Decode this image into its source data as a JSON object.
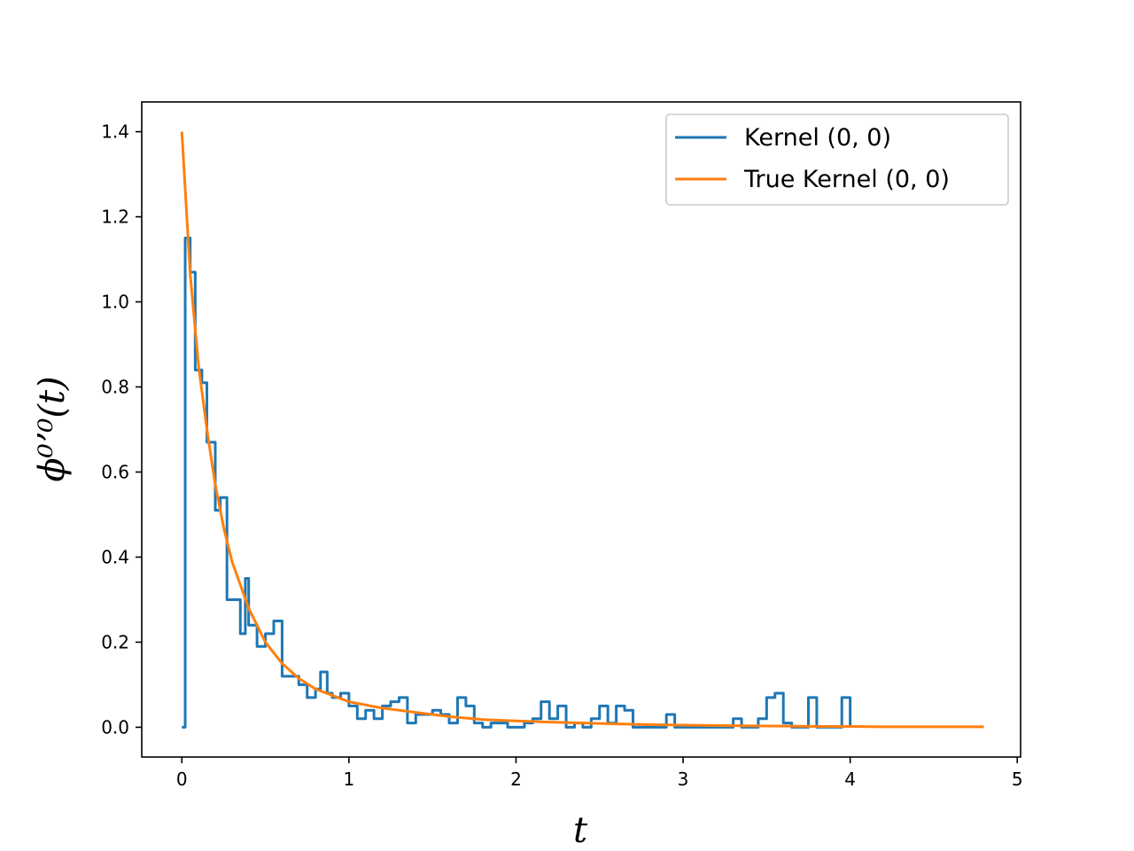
{
  "chart_data": {
    "type": "line",
    "title": "",
    "xlabel": "t",
    "ylabel": "ϕ⁰ʼ⁰(t)",
    "xlim": [
      -0.24,
      5.02
    ],
    "ylim": [
      -0.07,
      1.47
    ],
    "xticks": [
      0,
      1,
      2,
      3,
      4,
      5
    ],
    "yticks": [
      0.0,
      0.2,
      0.4,
      0.6,
      0.8,
      1.0,
      1.2,
      1.4
    ],
    "ytick_labels": [
      "0.0",
      "0.2",
      "0.4",
      "0.6",
      "0.8",
      "1.0",
      "1.2",
      "1.4"
    ],
    "grid": false,
    "legend_position": "top-right",
    "series": [
      {
        "name": "Kernel (0, 0)",
        "color": "#1f77b4",
        "style": "step",
        "x": [
          0,
          0.02,
          0.05,
          0.08,
          0.12,
          0.15,
          0.2,
          0.23,
          0.27,
          0.3,
          0.35,
          0.38,
          0.4,
          0.45,
          0.5,
          0.55,
          0.6,
          0.65,
          0.7,
          0.75,
          0.8,
          0.83,
          0.87,
          0.9,
          0.95,
          1.0,
          1.05,
          1.1,
          1.15,
          1.2,
          1.25,
          1.3,
          1.35,
          1.4,
          1.5,
          1.55,
          1.6,
          1.65,
          1.7,
          1.75,
          1.8,
          1.85,
          1.9,
          1.95,
          2.0,
          2.05,
          2.1,
          2.15,
          2.2,
          2.25,
          2.3,
          2.35,
          2.4,
          2.45,
          2.5,
          2.55,
          2.6,
          2.65,
          2.7,
          2.75,
          2.8,
          2.85,
          2.9,
          2.95,
          3.0,
          3.1,
          3.2,
          3.3,
          3.35,
          3.4,
          3.45,
          3.5,
          3.55,
          3.6,
          3.65,
          3.7,
          3.75,
          3.8,
          3.85,
          3.9,
          3.95,
          4.0
        ],
        "values": [
          0.0,
          1.15,
          1.07,
          0.84,
          0.81,
          0.67,
          0.51,
          0.54,
          0.3,
          0.3,
          0.22,
          0.35,
          0.24,
          0.19,
          0.22,
          0.25,
          0.12,
          0.12,
          0.1,
          0.07,
          0.09,
          0.13,
          0.08,
          0.07,
          0.08,
          0.05,
          0.02,
          0.04,
          0.02,
          0.05,
          0.06,
          0.07,
          0.01,
          0.03,
          0.04,
          0.03,
          0.01,
          0.07,
          0.05,
          0.01,
          0.0,
          0.01,
          0.01,
          0.0,
          0.0,
          0.01,
          0.02,
          0.06,
          0.02,
          0.05,
          0.0,
          0.01,
          0.0,
          0.02,
          0.05,
          0.01,
          0.05,
          0.04,
          0.0,
          0.0,
          0.0,
          0.0,
          0.03,
          0.0,
          0.0,
          0.0,
          0.0,
          0.02,
          0.0,
          0.0,
          0.02,
          0.07,
          0.08,
          0.01,
          0.0,
          0.0,
          0.07,
          0.0,
          0.0,
          0.0,
          0.07,
          0.0
        ]
      },
      {
        "name": "True Kernel (0, 0)",
        "color": "#ff7f0e",
        "style": "line",
        "x": [
          0,
          0.05,
          0.1,
          0.15,
          0.2,
          0.25,
          0.3,
          0.4,
          0.5,
          0.6,
          0.7,
          0.8,
          0.9,
          1.0,
          1.2,
          1.4,
          1.6,
          1.8,
          2.0,
          2.2,
          2.5,
          2.8,
          3.0,
          3.2,
          3.5,
          3.8,
          4.0,
          4.2,
          4.5,
          4.8
        ],
        "values": [
          1.4,
          1.065,
          0.85,
          0.7,
          0.57,
          0.47,
          0.39,
          0.28,
          0.2,
          0.15,
          0.115,
          0.09,
          0.075,
          0.06,
          0.045,
          0.035,
          0.025,
          0.018,
          0.015,
          0.012,
          0.009,
          0.006,
          0.005,
          0.004,
          0.003,
          0.002,
          0.002,
          0.001,
          0.001,
          0.001
        ]
      }
    ]
  }
}
